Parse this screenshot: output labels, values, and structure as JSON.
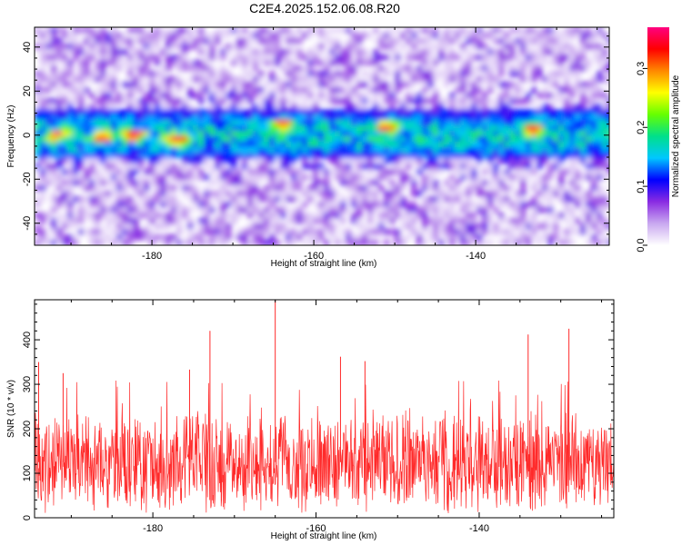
{
  "title": "C2E4.2025.152.06.08.R20",
  "chart_data": [
    {
      "type": "heatmap",
      "xlabel": "Height of straight line (km)",
      "ylabel": "Frequency (Hz)",
      "xlim": [
        -194.5,
        -123.5
      ],
      "ylim": [
        -50,
        49
      ],
      "x_ticks": [
        -180,
        -160,
        -140
      ],
      "y_ticks": [
        -40,
        -20,
        0,
        20,
        40
      ],
      "colorbar": {
        "label": "Normalized spectral amplitude",
        "range": [
          0,
          0.37
        ],
        "ticks": [
          0.0,
          0.1,
          0.2,
          0.3
        ],
        "tick_labels": [
          "0.0",
          "0.1",
          "0.2",
          "0.3"
        ],
        "colormap": [
          "#ffffff",
          "#c9a8f0",
          "#8a2be2",
          "#0000ff",
          "#00c8ff",
          "#00e08a",
          "#66ff00",
          "#ffff00",
          "#ff8800",
          "#ff0000",
          "#ff0080"
        ]
      },
      "description_band": {
        "center_hz": 0,
        "half_width_hz": 8,
        "hotspots": [
          {
            "x": -191.5,
            "y": 0
          },
          {
            "x": -186,
            "y": -1
          },
          {
            "x": -182,
            "y": 0
          },
          {
            "x": -177,
            "y": -2
          },
          {
            "x": -164,
            "y": 5
          },
          {
            "x": -151,
            "y": 4
          },
          {
            "x": -133,
            "y": 3
          }
        ]
      },
      "grid": false
    },
    {
      "type": "line",
      "xlabel": "Height of straight line (km)",
      "ylabel": "SNR (10 * v/v)",
      "xlim": [
        -194.5,
        -123.5
      ],
      "ylim": [
        0,
        490
      ],
      "x_ticks": [
        -180,
        -160,
        -140
      ],
      "y_ticks": [
        0,
        100,
        200,
        300,
        400
      ],
      "series": [
        {
          "color": "#ff2a2a",
          "baseline_mean": 125,
          "spikes": [
            {
              "x": -194,
              "y": 350
            },
            {
              "x": -191,
              "y": 325
            },
            {
              "x": -175.5,
              "y": 333
            },
            {
              "x": -173,
              "y": 420
            },
            {
              "x": -165,
              "y": 495
            },
            {
              "x": -157,
              "y": 362
            },
            {
              "x": -154,
              "y": 352
            },
            {
              "x": -134,
              "y": 412
            },
            {
              "x": -129,
              "y": 425
            }
          ]
        }
      ],
      "grid": false
    }
  ]
}
